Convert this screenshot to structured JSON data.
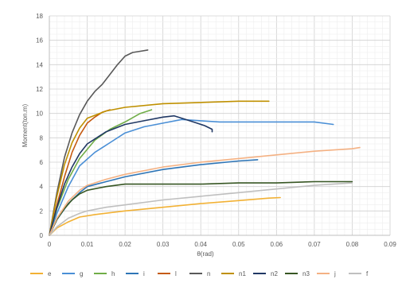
{
  "chart_data": {
    "type": "line",
    "title": "",
    "xlabel": "θ(rad)",
    "ylabel": "Moment(ton.m)",
    "xlim": [
      0,
      0.09
    ],
    "ylim": [
      0,
      18
    ],
    "x_ticks": [
      "0",
      "0.01",
      "0.02",
      "0.03",
      "0.04",
      "0.05",
      "0.06",
      "0.07",
      "0.08",
      "0.09"
    ],
    "y_ticks": [
      "0",
      "2",
      "4",
      "6",
      "8",
      "10",
      "12",
      "14",
      "16",
      "18"
    ],
    "grid": true,
    "legend_position": "bottom",
    "series": [
      {
        "name": "e",
        "color": "#f2b134",
        "x": [
          0,
          0.002,
          0.005,
          0.008,
          0.012,
          0.02,
          0.03,
          0.04,
          0.05,
          0.058,
          0.061
        ],
        "y": [
          0,
          0.6,
          1.1,
          1.5,
          1.7,
          2.0,
          2.3,
          2.6,
          2.85,
          3.05,
          3.1
        ]
      },
      {
        "name": "g",
        "color": "#4a8fd6",
        "x": [
          0,
          0.002,
          0.005,
          0.008,
          0.012,
          0.016,
          0.02,
          0.025,
          0.03,
          0.035,
          0.04,
          0.045,
          0.05,
          0.06,
          0.07,
          0.075
        ],
        "y": [
          0,
          1.8,
          4.0,
          5.7,
          6.8,
          7.6,
          8.4,
          8.9,
          9.2,
          9.5,
          9.4,
          9.3,
          9.3,
          9.3,
          9.3,
          9.1
        ]
      },
      {
        "name": "h",
        "color": "#70ad47",
        "x": [
          0,
          0.002,
          0.005,
          0.008,
          0.012,
          0.016,
          0.02,
          0.024,
          0.027
        ],
        "y": [
          0,
          2.2,
          4.6,
          6.3,
          7.8,
          8.7,
          9.3,
          10.0,
          10.3
        ]
      },
      {
        "name": "i",
        "color": "#2e75b6",
        "x": [
          0,
          0.002,
          0.005,
          0.008,
          0.01,
          0.015,
          0.02,
          0.03,
          0.04,
          0.05,
          0.055
        ],
        "y": [
          0,
          1.3,
          2.6,
          3.5,
          4.0,
          4.4,
          4.8,
          5.4,
          5.8,
          6.1,
          6.2
        ]
      },
      {
        "name": "l",
        "color": "#c55a11",
        "x": [
          0,
          0.002,
          0.004,
          0.006,
          0.008,
          0.01,
          0.012,
          0.014,
          0.016
        ],
        "y": [
          0,
          2.5,
          4.8,
          6.8,
          8.2,
          9.2,
          9.7,
          10.1,
          10.3
        ]
      },
      {
        "name": "n",
        "color": "#595959",
        "x": [
          0,
          0.002,
          0.004,
          0.006,
          0.008,
          0.01,
          0.012,
          0.014,
          0.016,
          0.018,
          0.02,
          0.022,
          0.024,
          0.026
        ],
        "y": [
          0,
          3.5,
          6.4,
          8.4,
          9.9,
          11.0,
          11.8,
          12.4,
          13.2,
          14.0,
          14.7,
          15.0,
          15.1,
          15.2
        ]
      },
      {
        "name": "n1",
        "color": "#bf9000",
        "x": [
          0,
          0.002,
          0.004,
          0.006,
          0.008,
          0.01,
          0.015,
          0.02,
          0.03,
          0.04,
          0.05,
          0.058
        ],
        "y": [
          0,
          3.2,
          5.8,
          7.6,
          8.8,
          9.6,
          10.2,
          10.5,
          10.8,
          10.9,
          11.0,
          11.0
        ]
      },
      {
        "name": "n2",
        "color": "#203864",
        "x": [
          0,
          0.002,
          0.004,
          0.006,
          0.008,
          0.01,
          0.015,
          0.02,
          0.025,
          0.03,
          0.033,
          0.036,
          0.039,
          0.041,
          0.043,
          0.043
        ],
        "y": [
          0,
          2.3,
          4.2,
          5.6,
          6.7,
          7.5,
          8.5,
          9.1,
          9.4,
          9.7,
          9.8,
          9.5,
          9.2,
          9.0,
          8.7,
          8.5
        ]
      },
      {
        "name": "n3",
        "color": "#375623",
        "x": [
          0,
          0.002,
          0.004,
          0.006,
          0.008,
          0.01,
          0.015,
          0.02,
          0.03,
          0.04,
          0.05,
          0.06,
          0.07,
          0.08
        ],
        "y": [
          0,
          1.3,
          2.2,
          2.9,
          3.4,
          3.7,
          4.0,
          4.2,
          4.2,
          4.2,
          4.3,
          4.3,
          4.4,
          4.4
        ]
      },
      {
        "name": "j",
        "color": "#f4b183",
        "x": [
          0,
          0.002,
          0.005,
          0.008,
          0.01,
          0.015,
          0.02,
          0.03,
          0.04,
          0.05,
          0.06,
          0.07,
          0.08,
          0.082
        ],
        "y": [
          0,
          1.4,
          2.8,
          3.7,
          4.1,
          4.6,
          5.0,
          5.6,
          6.0,
          6.3,
          6.6,
          6.9,
          7.1,
          7.2
        ]
      },
      {
        "name": "f",
        "color": "#bfbfbf",
        "x": [
          0,
          0.002,
          0.005,
          0.008,
          0.01,
          0.015,
          0.02,
          0.03,
          0.04,
          0.05,
          0.06,
          0.07,
          0.08
        ],
        "y": [
          0,
          0.7,
          1.4,
          1.8,
          2.0,
          2.3,
          2.5,
          2.9,
          3.2,
          3.5,
          3.8,
          4.1,
          4.3
        ]
      }
    ]
  }
}
